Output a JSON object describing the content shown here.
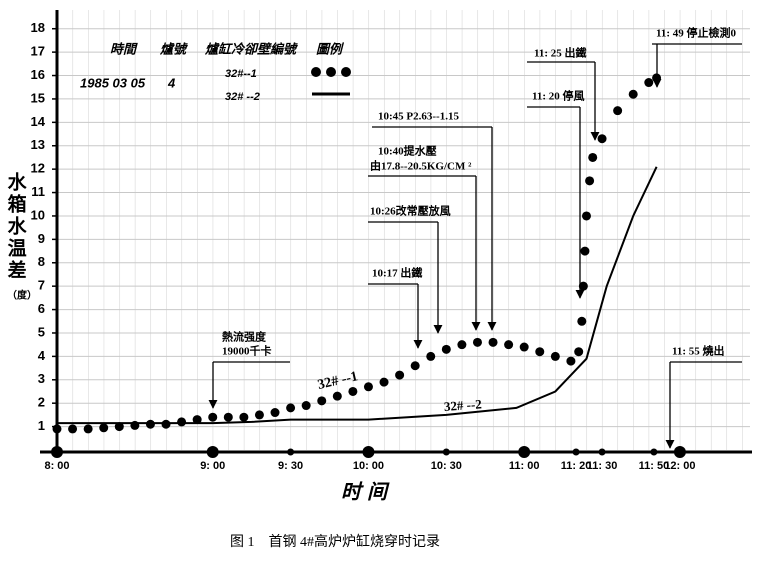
{
  "chart_data": {
    "type": "line",
    "title": "图 1　首钢 4#高炉炉缸烧穿时记录",
    "xlabel": "时间",
    "ylabel": "水箱水温差",
    "yunit": "（度）",
    "legend_table": {
      "headers": [
        "時間",
        "爐號",
        "爐缸冷卻壁編號",
        "圖例"
      ],
      "date": "1985 03 05",
      "furnace": "4"
    },
    "series": [
      {
        "name": "32#--1",
        "color": "#000000",
        "style": "dots",
        "x": [
          8.0,
          8.1,
          8.2,
          8.3,
          8.4,
          8.5,
          8.6,
          8.7,
          8.8,
          8.9,
          9.0,
          9.1,
          9.2,
          9.3,
          9.4,
          9.5,
          9.6,
          9.7,
          9.8,
          9.9,
          10.0,
          10.1,
          10.2,
          10.3,
          10.4,
          10.5,
          10.6,
          10.7,
          10.8,
          10.9,
          11.0,
          11.1,
          11.2,
          11.3,
          11.35,
          11.37,
          11.38,
          11.39,
          11.4,
          11.42,
          11.44,
          11.5,
          11.6,
          11.7,
          11.8,
          11.85
        ],
        "values": [
          0.9,
          0.9,
          0.9,
          0.95,
          1.0,
          1.05,
          1.1,
          1.1,
          1.2,
          1.3,
          1.4,
          1.4,
          1.4,
          1.5,
          1.6,
          1.8,
          1.9,
          2.1,
          2.3,
          2.5,
          2.7,
          2.9,
          3.2,
          3.6,
          4.0,
          4.3,
          4.5,
          4.6,
          4.6,
          4.5,
          4.4,
          4.2,
          4.0,
          3.8,
          4.2,
          5.5,
          7,
          8.5,
          10,
          11.5,
          12.5,
          13.3,
          14.5,
          15.2,
          15.7,
          15.9
        ]
      },
      {
        "name": "32# --2",
        "color": "#000000",
        "style": "line",
        "x": [
          8.0,
          9.0,
          9.25,
          9.5,
          10.0,
          10.5,
          10.95,
          11.2,
          11.4,
          11.53,
          11.7,
          11.85
        ],
        "values": [
          1.15,
          1.15,
          1.2,
          1.3,
          1.3,
          1.5,
          1.8,
          2.5,
          3.9,
          7,
          10,
          12.1
        ]
      }
    ],
    "series_labels": [
      "32# --1",
      "32# --2"
    ],
    "annotations": [
      [
        "熱流强度",
        "19000千卡"
      ],
      [
        "10:17 出鐵"
      ],
      [
        "10:26改常壓放風"
      ],
      [
        "10:40提水壓",
        "由17.8--20.5KG/CM ²"
      ],
      [
        "10:45 P2.63--1.15"
      ],
      [
        "11: 20 停風"
      ],
      [
        "11: 25 出鐵"
      ],
      [
        "11: 49 停止檢測0"
      ],
      [
        "11: 55 燒出"
      ]
    ],
    "xlim": [
      8,
      12.45
    ],
    "ylim": [
      0,
      18.8
    ],
    "xticks": [
      {
        "value": 8,
        "label": "8: 00"
      },
      {
        "value": 9,
        "label": "9: 00"
      },
      {
        "value": 9.5,
        "label": "9: 30"
      },
      {
        "value": 10,
        "label": "10: 00"
      },
      {
        "value": 10.5,
        "label": "10: 30"
      },
      {
        "value": 11,
        "label": "11: 00"
      },
      {
        "value": 11.333,
        "label": "11: 20"
      },
      {
        "value": 11.5,
        "label": "11: 30"
      },
      {
        "value": 11.833,
        "label": "11: 50"
      },
      {
        "value": 12,
        "label": "12: 00"
      }
    ],
    "yticks": [
      1,
      2,
      3,
      4,
      5,
      6,
      7,
      8,
      9,
      10,
      11,
      12,
      13,
      14,
      15,
      16,
      17,
      18
    ],
    "grid": true
  }
}
